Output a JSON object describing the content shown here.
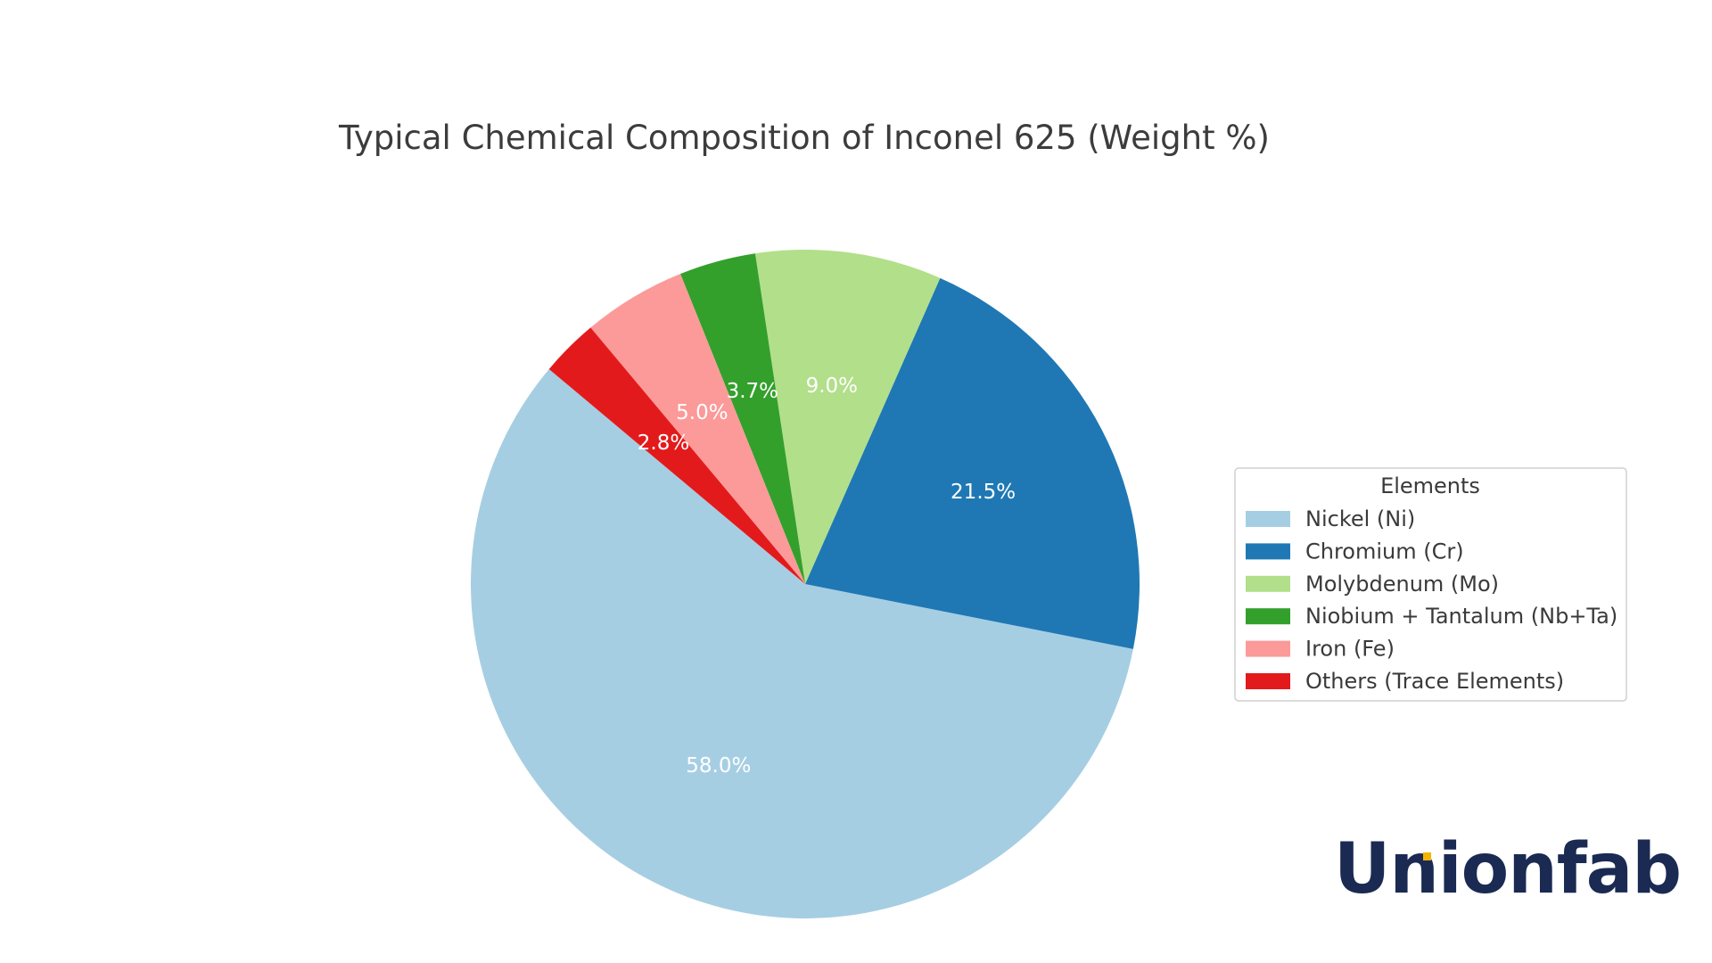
{
  "chart_data": {
    "type": "pie",
    "title": "Typical Chemical Composition of Inconel 625 (Weight %)",
    "slices": [
      {
        "label": "Nickel (Ni)",
        "value": 58.0,
        "pct_label": "58.0%",
        "color": "#a6cee3"
      },
      {
        "label": "Chromium (Cr)",
        "value": 21.5,
        "pct_label": "21.5%",
        "color": "#1f78b4"
      },
      {
        "label": "Molybdenum (Mo)",
        "value": 9.0,
        "pct_label": "9.0%",
        "color": "#b2df8a"
      },
      {
        "label": "Niobium + Tantalum (Nb+Ta)",
        "value": 3.7,
        "pct_label": "3.7%",
        "color": "#33a02c"
      },
      {
        "label": "Iron (Fe)",
        "value": 5.0,
        "pct_label": "5.0%",
        "color": "#fb9a99"
      },
      {
        "label": "Others (Trace Elements)",
        "value": 2.8,
        "pct_label": "2.8%",
        "color": "#e31a1c"
      }
    ],
    "legend": {
      "title": "Elements",
      "placement": "right"
    }
  },
  "logo": {
    "text": "Unionfab"
  }
}
